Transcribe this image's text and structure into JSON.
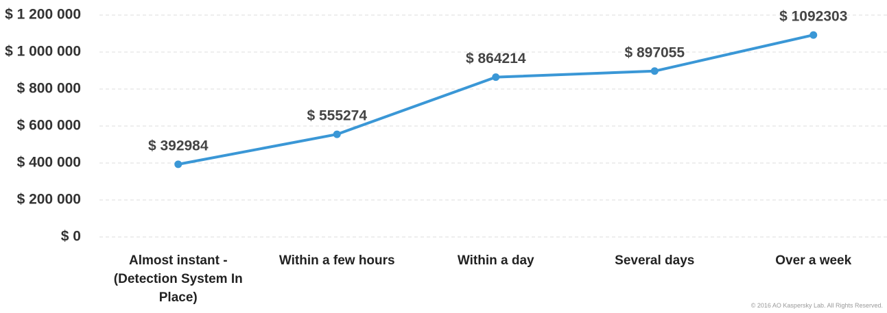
{
  "chart_data": {
    "type": "line",
    "categories": [
      "Almost instant - (Detection System In Place)",
      "Within a few hours",
      "Within a day",
      "Several days",
      "Over a week"
    ],
    "values": [
      392984,
      555274,
      864214,
      897055,
      1092303
    ],
    "value_labels": [
      "$ 392984",
      "$ 555274",
      "$ 864214",
      "$ 897055",
      "$ 1092303"
    ],
    "color": "#3a97d6",
    "ylim": [
      0,
      1200000
    ],
    "yticks": [
      {
        "value": 0,
        "label": "$ 0"
      },
      {
        "value": 200000,
        "label": "$ 200 000"
      },
      {
        "value": 400000,
        "label": "$ 400 000"
      },
      {
        "value": 600000,
        "label": "$ 600 000"
      },
      {
        "value": 800000,
        "label": "$ 800 000"
      },
      {
        "value": 1000000,
        "label": "$ 1 000 000"
      },
      {
        "value": 1200000,
        "label": "$ 1 200 000"
      }
    ],
    "grid": true,
    "footnote": "© 2016 AO Kaspersky Lab. All Rights Reserved."
  }
}
